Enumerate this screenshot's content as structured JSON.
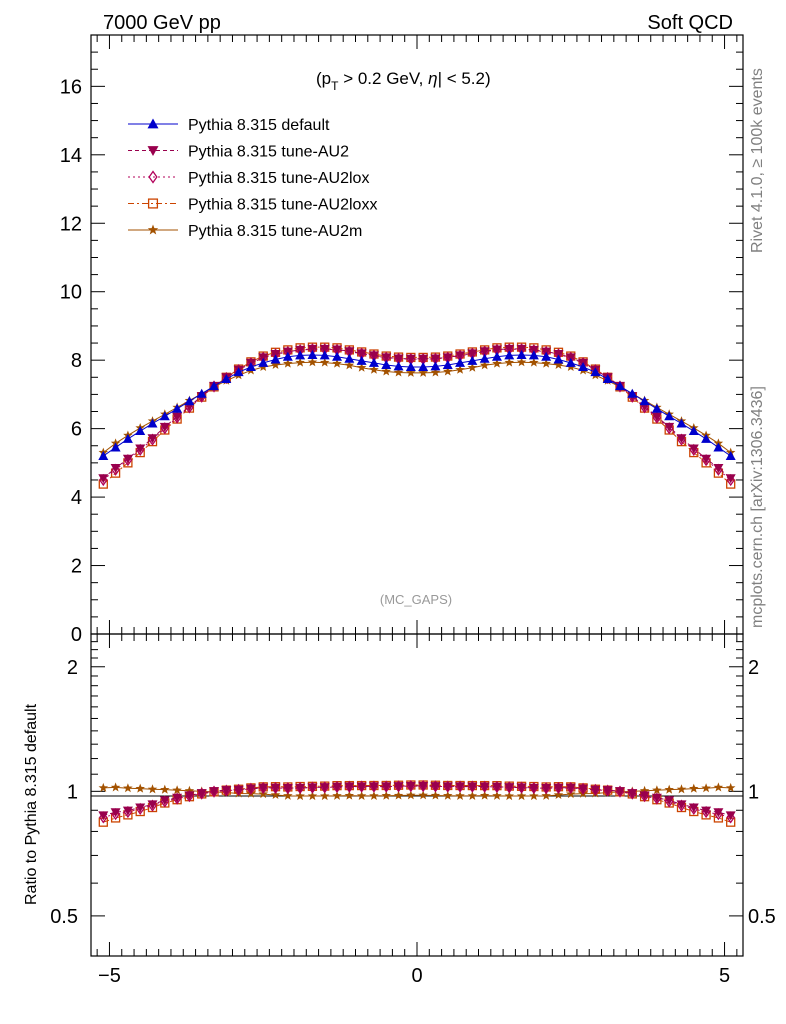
{
  "header": {
    "left_title": "7000 GeV pp",
    "right_title": "Soft QCD"
  },
  "cut_label": {
    "open": "(p",
    "sub": "T",
    "mid": " > 0.2 GeV, ",
    "eta": "η",
    "close": "| < 5.2)"
  },
  "side_labels": {
    "rivet": "Rivet 4.1.0, ≥ 100k events",
    "mcplots": "mcplots.cern.ch [arXiv:1306.3436]"
  },
  "watermark": "(MC_GAPS)",
  "ratio_ylabel": "Ratio to Pythia 8.315 default",
  "legend": [
    "Pythia 8.315 default",
    "Pythia 8.315 tune-AU2",
    "Pythia 8.315 tune-AU2lox",
    "Pythia 8.315 tune-AU2loxx",
    "Pythia 8.315 tune-AU2m"
  ],
  "colors": {
    "default": "#0000cc",
    "au2": "#99004d",
    "au2lox": "#b3005a",
    "au2loxx": "#cc4400",
    "au2m": "#a35200"
  },
  "chart_data": {
    "type": "line",
    "title": "7000 GeV pp — Soft QCD",
    "xlabel": "",
    "ylabel": "",
    "xlim": [
      -5.3,
      5.3
    ],
    "ylim": [
      0,
      17.5
    ],
    "ratio_ylim": [
      0.4,
      2.4
    ],
    "ratio_scale": "log",
    "main_y_ticks": [
      "0",
      "2",
      "4",
      "6",
      "8",
      "10",
      "12",
      "14",
      "16"
    ],
    "ratio_y_ticks": [
      "0.5",
      "1",
      "2"
    ],
    "x_ticks": [
      "−5",
      "0",
      "5"
    ],
    "x": [
      -5.1,
      -4.9,
      -4.7,
      -4.5,
      -4.3,
      -4.1,
      -3.9,
      -3.7,
      -3.5,
      -3.3,
      -3.1,
      -2.9,
      -2.7,
      -2.5,
      -2.3,
      -2.1,
      -1.9,
      -1.7,
      -1.5,
      -1.3,
      -1.1,
      -0.9,
      -0.7,
      -0.5,
      -0.3,
      -0.1,
      0.1,
      0.3,
      0.5,
      0.7,
      0.9,
      1.1,
      1.3,
      1.5,
      1.7,
      1.9,
      2.1,
      2.3,
      2.5,
      2.7,
      2.9,
      3.1,
      3.3,
      3.5,
      3.7,
      3.9,
      4.1,
      4.3,
      4.5,
      4.7,
      4.9,
      5.1
    ],
    "series": [
      {
        "name": "Pythia 8.315 default",
        "marker": "triangle-up",
        "values": [
          5.2,
          5.45,
          5.7,
          5.93,
          6.15,
          6.36,
          6.58,
          6.8,
          7.02,
          7.24,
          7.45,
          7.65,
          7.8,
          7.92,
          8.02,
          8.1,
          8.14,
          8.15,
          8.14,
          8.1,
          8.04,
          7.98,
          7.92,
          7.86,
          7.82,
          7.8,
          7.8,
          7.82,
          7.86,
          7.92,
          7.98,
          8.04,
          8.1,
          8.14,
          8.15,
          8.14,
          8.1,
          8.02,
          7.92,
          7.8,
          7.65,
          7.45,
          7.24,
          7.02,
          6.8,
          6.58,
          6.36,
          6.15,
          5.93,
          5.7,
          5.45,
          5.2
        ]
      },
      {
        "name": "Pythia 8.315 tune-AU2",
        "marker": "triangle-down",
        "values": [
          4.55,
          4.85,
          5.12,
          5.42,
          5.72,
          6.05,
          6.35,
          6.65,
          6.95,
          7.25,
          7.5,
          7.72,
          7.92,
          8.08,
          8.18,
          8.25,
          8.3,
          8.33,
          8.33,
          8.31,
          8.26,
          8.2,
          8.14,
          8.08,
          8.05,
          8.04,
          8.04,
          8.05,
          8.08,
          8.14,
          8.2,
          8.26,
          8.31,
          8.33,
          8.33,
          8.3,
          8.25,
          8.18,
          8.08,
          7.92,
          7.72,
          7.5,
          7.25,
          6.95,
          6.65,
          6.35,
          6.05,
          5.72,
          5.42,
          5.12,
          4.85,
          4.55
        ]
      },
      {
        "name": "Pythia 8.315 tune-AU2lox",
        "marker": "diamond-open",
        "values": [
          4.5,
          4.8,
          5.08,
          5.38,
          5.68,
          6.01,
          6.32,
          6.62,
          6.93,
          7.23,
          7.48,
          7.71,
          7.91,
          8.07,
          8.17,
          8.24,
          8.29,
          8.32,
          8.32,
          8.3,
          8.25,
          8.19,
          8.13,
          8.07,
          8.04,
          8.03,
          8.03,
          8.04,
          8.07,
          8.13,
          8.19,
          8.25,
          8.3,
          8.32,
          8.32,
          8.29,
          8.24,
          8.17,
          8.07,
          7.91,
          7.71,
          7.48,
          7.23,
          6.93,
          6.62,
          6.32,
          6.01,
          5.68,
          5.38,
          5.08,
          4.8,
          4.5
        ]
      },
      {
        "name": "Pythia 8.315 tune-AU2loxx",
        "marker": "square-open",
        "values": [
          4.38,
          4.7,
          5.0,
          5.3,
          5.62,
          5.96,
          6.28,
          6.6,
          6.92,
          7.22,
          7.5,
          7.74,
          7.95,
          8.12,
          8.23,
          8.3,
          8.36,
          8.38,
          8.38,
          8.36,
          8.3,
          8.24,
          8.18,
          8.12,
          8.09,
          8.08,
          8.08,
          8.09,
          8.12,
          8.18,
          8.24,
          8.3,
          8.36,
          8.38,
          8.38,
          8.36,
          8.3,
          8.23,
          8.12,
          7.95,
          7.74,
          7.5,
          7.22,
          6.92,
          6.6,
          6.28,
          5.96,
          5.62,
          5.3,
          5.0,
          4.7,
          4.38
        ]
      },
      {
        "name": "Pythia 8.315 tune-AU2m",
        "marker": "star",
        "values": [
          5.3,
          5.57,
          5.8,
          6.02,
          6.22,
          6.42,
          6.62,
          6.82,
          7.02,
          7.22,
          7.4,
          7.56,
          7.7,
          7.8,
          7.86,
          7.9,
          7.93,
          7.94,
          7.93,
          7.9,
          7.85,
          7.78,
          7.72,
          7.67,
          7.64,
          7.63,
          7.63,
          7.64,
          7.67,
          7.72,
          7.78,
          7.85,
          7.9,
          7.93,
          7.94,
          7.93,
          7.9,
          7.86,
          7.8,
          7.7,
          7.56,
          7.4,
          7.22,
          7.02,
          6.82,
          6.62,
          6.42,
          6.22,
          6.02,
          5.8,
          5.57,
          5.3
        ]
      }
    ]
  }
}
